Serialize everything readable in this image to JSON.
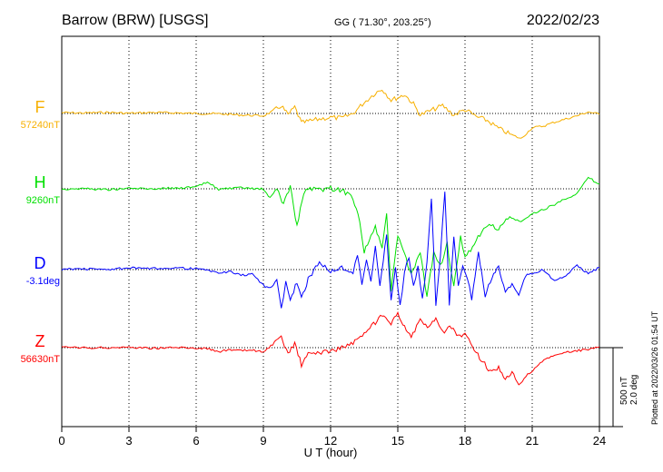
{
  "header": {
    "station": "Barrow (BRW)  [USGS]",
    "coords": "GG ( 71.30°, 203.25°)",
    "date": "2022/02/23"
  },
  "side_note": "Plotted at 2022/03/26 01:54 UT",
  "scale_bar": {
    "line1": "500 nT",
    "line2": "2.0 deg"
  },
  "colors": {
    "F": "#f7b000",
    "H": "#00e000",
    "D": "#0000ff",
    "Z": "#ff0000",
    "grid": "#000000"
  },
  "chart_data": {
    "type": "line",
    "title": "Barrow (BRW)  [USGS]",
    "xlabel": "U T (hour)",
    "ylabel": "",
    "xlim": [
      0,
      24
    ],
    "x_ticks": [
      0,
      3,
      6,
      9,
      12,
      15,
      18,
      21,
      24
    ],
    "tick_labels": [
      "0",
      "3",
      "6",
      "9",
      "12",
      "15",
      "18",
      "21",
      "24"
    ],
    "grid": true,
    "units_per_bar": {
      "nT": 500,
      "deg": 2.0
    },
    "series": [
      {
        "name": "F",
        "baseline_label": "57240nT",
        "color": "#f7b000",
        "unit": "nT",
        "baseline": 57240,
        "x": [
          0,
          1,
          2,
          3,
          4,
          5,
          6,
          7,
          8,
          9,
          9.5,
          9.8,
          10.1,
          10.4,
          10.7,
          11,
          11.5,
          12,
          12.5,
          13,
          13.5,
          14,
          14.3,
          14.7,
          15,
          15.3,
          15.7,
          16,
          16.5,
          17,
          17.5,
          18,
          18.5,
          19,
          19.5,
          20,
          20.5,
          21,
          21.5,
          22,
          22.5,
          23,
          23.5,
          24
        ],
        "y": [
          57245,
          57243,
          57247,
          57241,
          57246,
          57244,
          57240,
          57238,
          57230,
          57225,
          57260,
          57290,
          57230,
          57280,
          57180,
          57190,
          57205,
          57215,
          57210,
          57240,
          57310,
          57370,
          57395,
          57325,
          57340,
          57360,
          57300,
          57230,
          57260,
          57290,
          57230,
          57265,
          57220,
          57195,
          57145,
          57110,
          57080,
          57150,
          57160,
          57185,
          57205,
          57225,
          57250,
          57235
        ]
      },
      {
        "name": "H",
        "baseline_label": "9260nT",
        "color": "#00e000",
        "unit": "nT",
        "baseline": 9260,
        "x": [
          0,
          1,
          2,
          3,
          4,
          5,
          6,
          6.5,
          7,
          8,
          9,
          9.3,
          9.6,
          9.9,
          10.2,
          10.5,
          10.8,
          11,
          11.5,
          12,
          12.5,
          13,
          13.3,
          13.5,
          13.8,
          14,
          14.3,
          14.5,
          14.7,
          15,
          15.3,
          15.6,
          16,
          16.3,
          16.6,
          16.9,
          17.2,
          17.5,
          17.8,
          18,
          18.5,
          19,
          19.5,
          20,
          20.5,
          21,
          21.5,
          22,
          22.5,
          23,
          23.5,
          24
        ],
        "y": [
          9258,
          9262,
          9255,
          9263,
          9260,
          9265,
          9270,
          9302,
          9258,
          9265,
          9258,
          9195,
          9265,
          9160,
          9280,
          9020,
          9235,
          9260,
          9255,
          9262,
          9252,
          9205,
          9060,
          8860,
          8960,
          9020,
          8870,
          9110,
          8620,
          8960,
          8850,
          8710,
          8860,
          8570,
          8860,
          8770,
          8910,
          8630,
          8950,
          8820,
          8935,
          9030,
          9010,
          9080,
          9050,
          9100,
          9130,
          9160,
          9200,
          9230,
          9330,
          9290
        ]
      },
      {
        "name": "D",
        "baseline_label": "-3.1deg",
        "color": "#0000ff",
        "unit": "deg",
        "baseline": -3.1,
        "x": [
          0,
          1,
          2,
          3,
          4,
          5,
          6,
          6.5,
          7,
          7.5,
          8,
          8.5,
          9,
          9.3,
          9.6,
          9.8,
          10,
          10.2,
          10.5,
          10.7,
          11,
          11.5,
          12,
          12.5,
          13,
          13.2,
          13.4,
          13.6,
          13.8,
          14,
          14.2,
          14.5,
          14.7,
          14.9,
          15.1,
          15.3,
          15.5,
          15.7,
          15.9,
          16.1,
          16.3,
          16.5,
          16.7,
          16.9,
          17.1,
          17.3,
          17.5,
          17.7,
          17.9,
          18.1,
          18.3,
          18.6,
          18.9,
          19.2,
          19.5,
          19.8,
          20.1,
          20.4,
          20.7,
          21,
          21.5,
          22,
          22.5,
          23,
          23.5,
          24
        ],
        "y": [
          -3.09,
          -3.08,
          -3.1,
          -3.06,
          -3.08,
          -3.05,
          -3.08,
          -3.12,
          -3.18,
          -3.15,
          -3.25,
          -3.2,
          -3.5,
          -3.6,
          -3.3,
          -4.1,
          -3.45,
          -3.9,
          -3.4,
          -3.8,
          -3.35,
          -2.9,
          -3.15,
          -3.05,
          -3.15,
          -2.75,
          -3.5,
          -2.85,
          -3.35,
          -2.5,
          -3.55,
          -2.2,
          -3.9,
          -3.0,
          -4.05,
          -3.2,
          -2.75,
          -3.55,
          -3.05,
          -3.85,
          -2.95,
          -1.3,
          -4.05,
          -2.75,
          -1.1,
          -3.95,
          -2.25,
          -3.45,
          -2.95,
          -3.3,
          -3.85,
          -2.7,
          -3.75,
          -3.3,
          -3.05,
          -3.65,
          -3.45,
          -3.75,
          -3.25,
          -3.2,
          -3.1,
          -3.4,
          -3.25,
          -3.0,
          -3.2,
          -3.05
        ]
      },
      {
        "name": "Z",
        "baseline_label": "56630nT",
        "color": "#ff0000",
        "unit": "nT",
        "baseline": 56630,
        "x": [
          0,
          1,
          2,
          3,
          4,
          5,
          6,
          6.5,
          7,
          7.5,
          8,
          8.5,
          9,
          9.5,
          9.8,
          10.1,
          10.4,
          10.7,
          11,
          11.5,
          12,
          12.5,
          13,
          13.5,
          14,
          14.3,
          14.7,
          15,
          15.3,
          15.6,
          16,
          16.4,
          16.7,
          17,
          17.4,
          17.7,
          18,
          18.5,
          18.8,
          19.2,
          19.5,
          19.8,
          20.1,
          20.4,
          20.8,
          21.2,
          21.6,
          22,
          22.5,
          23,
          23.5,
          24
        ],
        "y": [
          56632,
          56628,
          56630,
          56633,
          56627,
          56631,
          56628,
          56625,
          56605,
          56615,
          56610,
          56615,
          56600,
          56660,
          56690,
          56590,
          56660,
          56520,
          56590,
          56600,
          56610,
          56630,
          56660,
          56710,
          56790,
          56830,
          56770,
          56850,
          56760,
          56700,
          56800,
          56760,
          56810,
          56730,
          56760,
          56700,
          56710,
          56600,
          56540,
          56470,
          56500,
          56420,
          56480,
          56390,
          56460,
          56510,
          56560,
          56580,
          56600,
          56610,
          56620,
          56635
        ]
      }
    ]
  }
}
